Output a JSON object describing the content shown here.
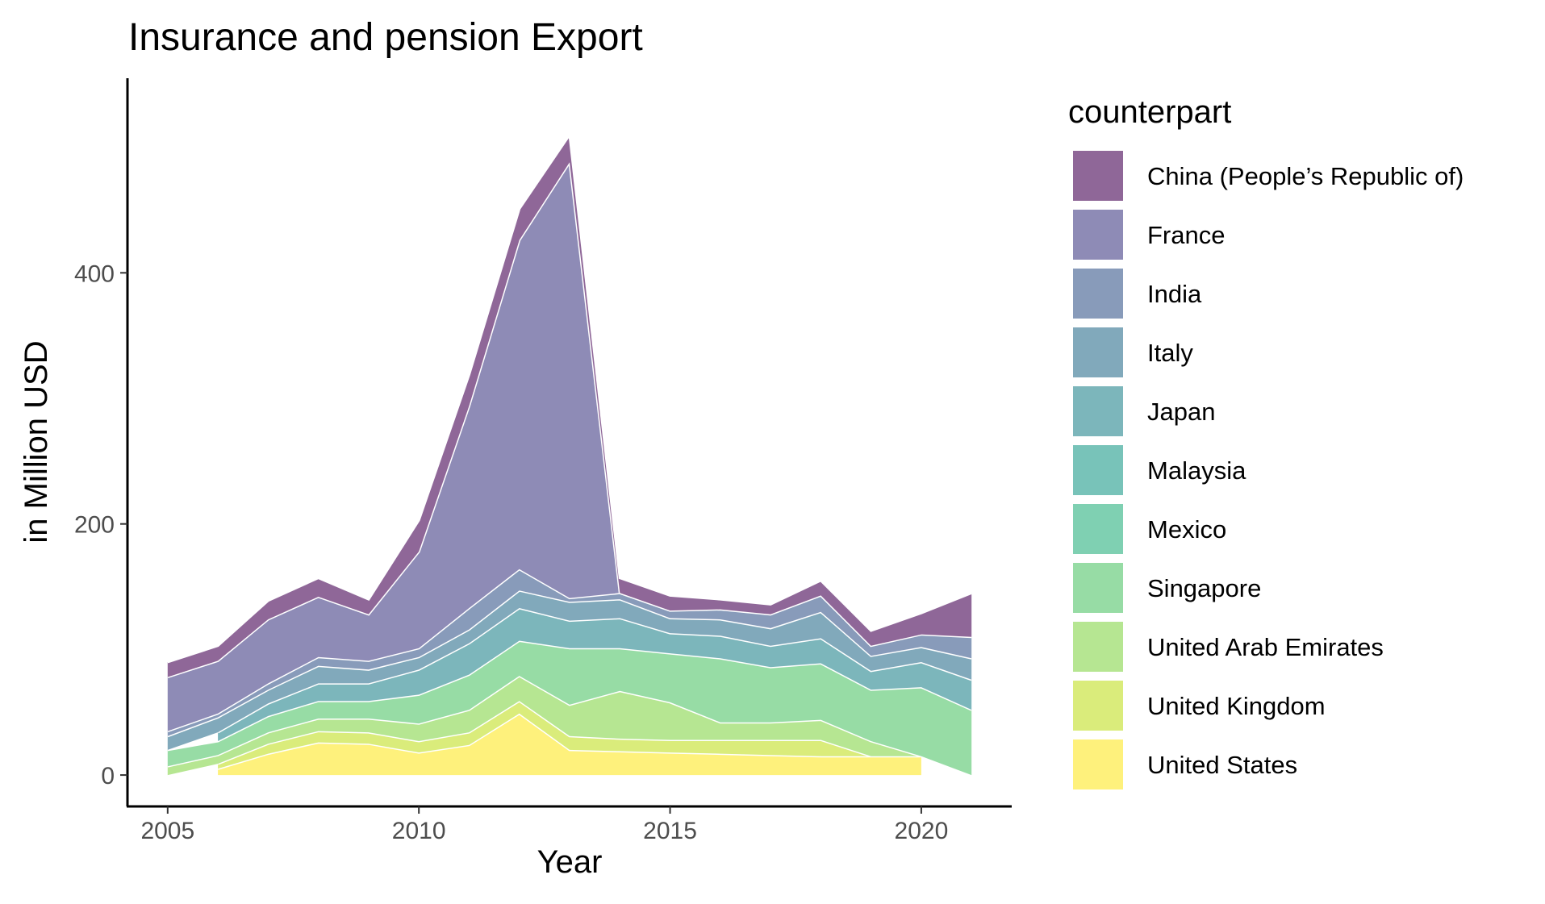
{
  "chart_data": {
    "type": "area",
    "title": "Insurance and pension Export",
    "xlabel": "Year",
    "ylabel": "in Million USD",
    "xlim": [
      2004.2,
      2021.8
    ],
    "ylim": [
      -25,
      555
    ],
    "x_ticks": [
      2005,
      2010,
      2015,
      2020
    ],
    "y_ticks": [
      0,
      200,
      400
    ],
    "grid": false,
    "legend_title": "counterpart",
    "legend_position": "right",
    "x": [
      2005,
      2006,
      2007,
      2008,
      2009,
      2010,
      2011,
      2012,
      2013,
      2014,
      2015,
      2016,
      2017,
      2018,
      2019,
      2020,
      2021
    ],
    "series": [
      {
        "name": "United States",
        "color": "#FDE725",
        "values": [
          0,
          5,
          17,
          26,
          25,
          18,
          24,
          49,
          20,
          19,
          18,
          17,
          16,
          15,
          15,
          15,
          null
        ]
      },
      {
        "name": "United Kingdom",
        "color": "#C2DF23",
        "values": [
          0,
          4,
          8,
          9,
          9,
          9,
          10,
          10,
          11,
          10,
          10,
          11,
          12,
          13,
          0,
          0,
          0
        ]
      },
      {
        "name": "United Arab Emirates",
        "color": "#86D549",
        "values": [
          7,
          7,
          9,
          10,
          11,
          14,
          18,
          20,
          25,
          38,
          30,
          14,
          14,
          16,
          12,
          0,
          0
        ]
      },
      {
        "name": "Singapore",
        "color": "#52C569",
        "values": [
          13,
          11,
          13,
          14,
          14,
          23,
          28,
          28,
          45,
          34,
          39,
          51,
          44,
          45,
          41,
          55,
          52
        ]
      },
      {
        "name": "Mexico",
        "color": "#2AB07F",
        "values": [
          0,
          0,
          0,
          0,
          0,
          0,
          0,
          0,
          0,
          0,
          0,
          0,
          0,
          0,
          0,
          0,
          0
        ]
      },
      {
        "name": "Malaysia",
        "color": "#1E9B8A",
        "values": [
          0,
          0,
          0,
          0,
          0,
          0,
          0,
          0,
          0,
          0,
          0,
          0,
          0,
          0,
          0,
          0,
          0
        ]
      },
      {
        "name": "Japan",
        "color": "#25858E",
        "values": [
          0,
          7,
          10,
          14,
          14,
          20,
          25,
          26,
          22,
          24,
          16,
          18,
          17,
          20,
          15,
          20,
          24
        ]
      },
      {
        "name": "Italy",
        "color": "#2D708E",
        "values": [
          11,
          12,
          11,
          14,
          11,
          10,
          11,
          14,
          15,
          15,
          12,
          13,
          14,
          21,
          12,
          12,
          17
        ]
      },
      {
        "name": "India",
        "color": "#38598C",
        "values": [
          4,
          3,
          5,
          7,
          7,
          7,
          17,
          17,
          3,
          5,
          6,
          8,
          11,
          13,
          8,
          10,
          17
        ]
      },
      {
        "name": "France",
        "color": "#433E85",
        "values": [
          43,
          42,
          51,
          48,
          37,
          77,
          161,
          262,
          347,
          0,
          0,
          0,
          0,
          0,
          0,
          0,
          0
        ]
      },
      {
        "name": "China (People's Republic of)",
        "color": "#440154",
        "values": [
          12,
          12,
          15,
          15,
          12,
          25,
          25,
          25,
          22,
          12,
          12,
          8,
          8,
          12,
          12,
          17,
          35
        ]
      }
    ],
    "legend_order": [
      "China (People’s Republic of)",
      "France",
      "India",
      "Italy",
      "Japan",
      "Malaysia",
      "Mexico",
      "Singapore",
      "United Arab Emirates",
      "United Kingdom",
      "United States"
    ]
  }
}
